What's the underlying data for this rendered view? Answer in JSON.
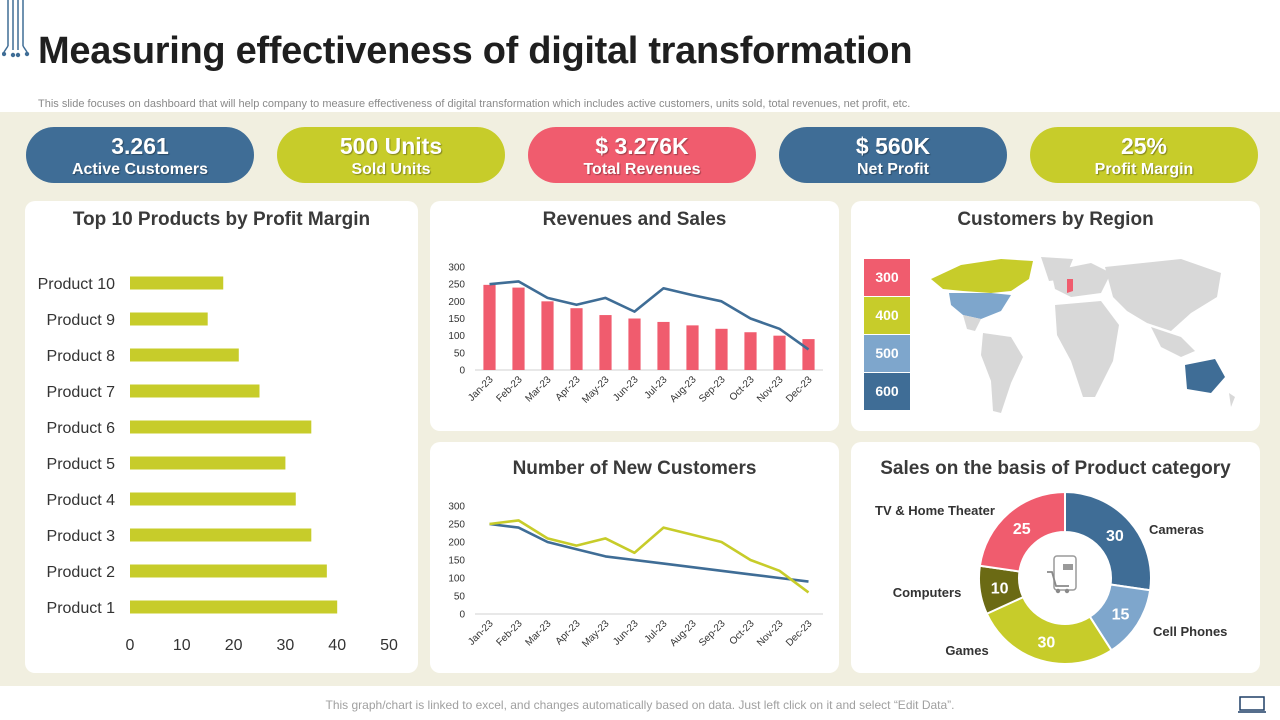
{
  "header": {
    "title": "Measuring effectiveness of digital transformation",
    "subtitle": "This slide focuses on dashboard that will help company to measure effectiveness of digital transformation which includes active customers, units sold, total revenues, net profit, etc."
  },
  "kpis": [
    {
      "value": "3.261",
      "label": "Active Customers",
      "color": "#3f6d96"
    },
    {
      "value": "500 Units",
      "label": "Sold Units",
      "color": "#c7cc2a"
    },
    {
      "value": "$ 3.276K",
      "label": "Total Revenues",
      "color": "#f05c6e"
    },
    {
      "value": "$ 560K",
      "label": "Net Profit",
      "color": "#3f6d96"
    },
    {
      "value": "25%",
      "label": "Profit Margin",
      "color": "#c7cc2a"
    }
  ],
  "cards": {
    "products_title": "Top 10 Products by Profit Margin",
    "revenue_title": "Revenues and Sales",
    "region_title": "Customers by Region",
    "newcust_title": "Number of New Customers",
    "category_title": "Sales on the basis of Product category"
  },
  "region_legend": [
    {
      "label": "300",
      "color": "#f05c6e"
    },
    {
      "label": "400",
      "color": "#c7cc2a"
    },
    {
      "label": "500",
      "color": "#7ea6cc"
    },
    {
      "label": "600",
      "color": "#3f6d96"
    }
  ],
  "footer": {
    "note": "This graph/chart is linked to excel, and changes automatically based on data. Just left click on it and select “Edit Data”."
  },
  "chart_data": [
    {
      "id": "products",
      "type": "bar",
      "orientation": "horizontal",
      "title": "Top 10 Products by Profit Margin",
      "categories": [
        "Product 10",
        "Product 9",
        "Product 8",
        "Product 7",
        "Product 6",
        "Product 5",
        "Product 4",
        "Product 3",
        "Product 2",
        "Product 1"
      ],
      "values": [
        18,
        15,
        21,
        25,
        35,
        30,
        32,
        35,
        38,
        40
      ],
      "xlim": [
        0,
        50
      ],
      "xticks": [
        0,
        10,
        20,
        30,
        40,
        50
      ],
      "color": "#c7cc2a"
    },
    {
      "id": "revenue",
      "type": "bar",
      "title": "Revenues and Sales",
      "categories": [
        "Jan-23",
        "Feb-23",
        "Mar-23",
        "Apr-23",
        "May-23",
        "Jun-23",
        "Jul-23",
        "Aug-23",
        "Sep-23",
        "Oct-23",
        "Nov-23",
        "Dec-23"
      ],
      "series": [
        {
          "type": "bar",
          "values": [
            248,
            240,
            200,
            180,
            160,
            150,
            140,
            130,
            120,
            110,
            100,
            90
          ],
          "color": "#f05c6e"
        },
        {
          "type": "line",
          "values": [
            250,
            258,
            210,
            190,
            210,
            170,
            238,
            218,
            200,
            150,
            120,
            60
          ],
          "color": "#3f6d96"
        }
      ],
      "ylim": [
        0,
        300
      ],
      "yticks": [
        0,
        50,
        100,
        150,
        200,
        250,
        300
      ]
    },
    {
      "id": "newcust",
      "type": "line",
      "title": "Number of New Customers",
      "categories": [
        "Jan-23",
        "Feb-23",
        "Mar-23",
        "Apr-23",
        "May-23",
        "Jun-23",
        "Jul-23",
        "Aug-23",
        "Sep-23",
        "Oct-23",
        "Nov-23",
        "Dec-23"
      ],
      "series": [
        {
          "values": [
            250,
            240,
            200,
            180,
            160,
            150,
            140,
            130,
            120,
            110,
            100,
            90
          ],
          "color": "#3f6d96"
        },
        {
          "values": [
            250,
            260,
            210,
            190,
            210,
            170,
            240,
            220,
            200,
            150,
            120,
            60
          ],
          "color": "#c7cc2a"
        }
      ],
      "ylim": [
        0,
        300
      ],
      "yticks": [
        0,
        50,
        100,
        150,
        200,
        250,
        300
      ]
    },
    {
      "id": "category",
      "type": "pie",
      "title": "Sales on the basis of Product category",
      "donut": true,
      "slices": [
        {
          "label": "Cameras",
          "value": 30,
          "color": "#3f6d96"
        },
        {
          "label": "Cell Phones",
          "value": 15,
          "color": "#7ea6cc"
        },
        {
          "label": "Games",
          "value": 30,
          "color": "#c7cc2a"
        },
        {
          "label": "Computers",
          "value": 10,
          "color": "#6b6a14"
        },
        {
          "label": "TV & Home Theater",
          "value": 25,
          "color": "#f05c6e"
        }
      ]
    }
  ]
}
